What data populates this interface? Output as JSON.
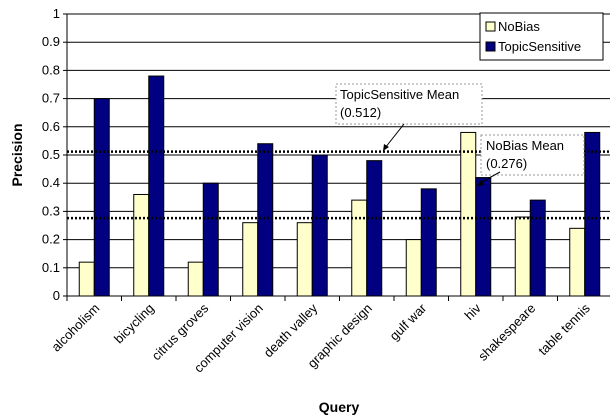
{
  "chart_data": {
    "type": "bar",
    "title": "",
    "xlabel": "Query",
    "ylabel": "Precision",
    "ylim": [
      0,
      1
    ],
    "yticks": [
      0,
      0.1,
      0.2,
      0.3,
      0.4,
      0.5,
      0.6,
      0.7,
      0.8,
      0.9,
      1
    ],
    "ytick_labels": [
      "0",
      "0.1",
      "0.2",
      "0.3",
      "0.4",
      "0.5",
      "0.6",
      "0.7",
      "0.8",
      "0.9",
      "1"
    ],
    "grid": true,
    "legend_position": "top-right",
    "categories": [
      "alcoholism",
      "bicycling",
      "citrus groves",
      "computer vision",
      "death valley",
      "graphic design",
      "gulf war",
      "hiv",
      "shakespeare",
      "table tennis"
    ],
    "series": [
      {
        "name": "NoBias",
        "color": "#ffffcc",
        "values": [
          0.12,
          0.36,
          0.12,
          0.26,
          0.26,
          0.34,
          0.2,
          0.58,
          0.28,
          0.24
        ]
      },
      {
        "name": "TopicSensitive",
        "color": "#000080",
        "values": [
          0.7,
          0.78,
          0.4,
          0.54,
          0.5,
          0.48,
          0.38,
          0.42,
          0.34,
          0.58
        ]
      }
    ],
    "reference_lines": [
      {
        "series": "TopicSensitive",
        "value": 0.512,
        "label_line1": "TopicSensitive Mean",
        "label_line2": "(0.512)"
      },
      {
        "series": "NoBias",
        "value": 0.276,
        "label_line1": "NoBias Mean",
        "label_line2": "(0.276)"
      }
    ]
  }
}
